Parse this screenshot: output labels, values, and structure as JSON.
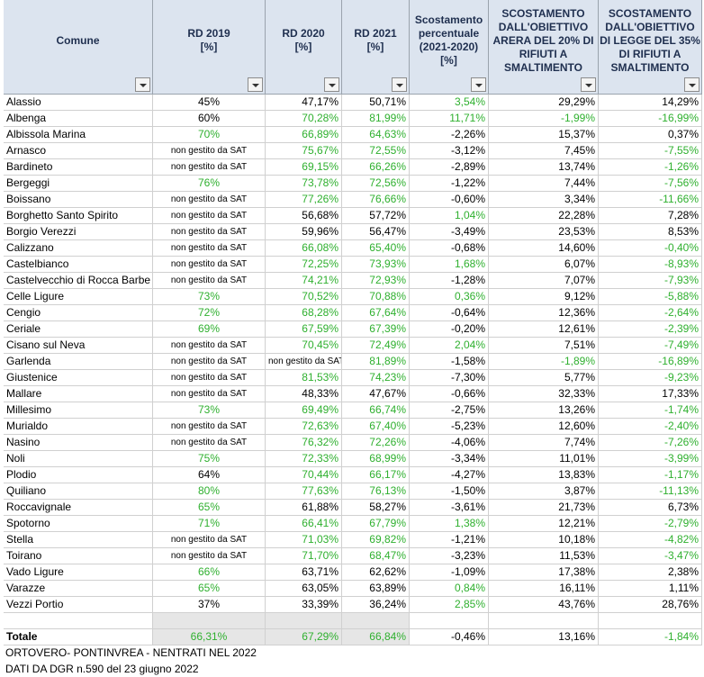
{
  "header": {
    "columns": [
      "Comune",
      "RD 2019\n[%]",
      "RD 2020\n[%]",
      "RD 2021\n[%]",
      "Scostamento\npercentuale\n(2021-2020)\n[%]",
      "SCOSTAMENTO\nDALL'OBIETTIVO\nARERA DEL 20% DI\nRIFIUTI A\nSMALTIMENTO",
      "SCOSTAMENTO\nDALL'OBIETTIVO\nDI LEGGE DEL 35%\nDI RIFIUTI A\nSMALTIMENTO"
    ]
  },
  "table": {
    "rows": [
      {
        "cells": [
          "Alassio",
          "45%",
          "47,17%",
          "50,71%",
          "3,54%",
          "29,29%",
          "14,29%"
        ],
        "colors": [
          "black",
          "black",
          "black",
          "green",
          "black",
          "black"
        ]
      },
      {
        "cells": [
          "Albenga",
          "60%",
          "70,28%",
          "81,99%",
          "11,71%",
          "-1,99%",
          "-16,99%"
        ],
        "colors": [
          "black",
          "green",
          "green",
          "green",
          "green",
          "green"
        ]
      },
      {
        "cells": [
          "Albissola Marina",
          "70%",
          "66,89%",
          "64,63%",
          "-2,26%",
          "15,37%",
          "0,37%"
        ],
        "colors": [
          "green",
          "green",
          "green",
          "black",
          "black",
          "black"
        ]
      },
      {
        "cells": [
          "Arnasco",
          "non gestito da SAT",
          "75,67%",
          "72,55%",
          "-3,12%",
          "7,45%",
          "-7,55%"
        ],
        "colors": [
          "black",
          "green",
          "green",
          "black",
          "black",
          "green"
        ]
      },
      {
        "cells": [
          "Bardineto",
          "non gestito da SAT",
          "69,15%",
          "66,26%",
          "-2,89%",
          "13,74%",
          "-1,26%"
        ],
        "colors": [
          "black",
          "green",
          "green",
          "black",
          "black",
          "green"
        ]
      },
      {
        "cells": [
          "Bergeggi",
          "76%",
          "73,78%",
          "72,56%",
          "-1,22%",
          "7,44%",
          "-7,56%"
        ],
        "colors": [
          "green",
          "green",
          "green",
          "black",
          "black",
          "green"
        ]
      },
      {
        "cells": [
          "Boissano",
          "non gestito da SAT",
          "77,26%",
          "76,66%",
          "-0,60%",
          "3,34%",
          "-11,66%"
        ],
        "colors": [
          "black",
          "green",
          "green",
          "black",
          "black",
          "green"
        ]
      },
      {
        "cells": [
          "Borghetto Santo Spirito",
          "non gestito da SAT",
          "56,68%",
          "57,72%",
          "1,04%",
          "22,28%",
          "7,28%"
        ],
        "colors": [
          "black",
          "black",
          "black",
          "green",
          "black",
          "black"
        ]
      },
      {
        "cells": [
          "Borgio Verezzi",
          "non gestito da SAT",
          "59,96%",
          "56,47%",
          "-3,49%",
          "23,53%",
          "8,53%"
        ],
        "colors": [
          "black",
          "black",
          "black",
          "black",
          "black",
          "black"
        ]
      },
      {
        "cells": [
          "Calizzano",
          "non gestito da SAT",
          "66,08%",
          "65,40%",
          "-0,68%",
          "14,60%",
          "-0,40%"
        ],
        "colors": [
          "black",
          "green",
          "green",
          "black",
          "black",
          "green"
        ]
      },
      {
        "cells": [
          "Castelbianco",
          "non gestito da SAT",
          "72,25%",
          "73,93%",
          "1,68%",
          "6,07%",
          "-8,93%"
        ],
        "colors": [
          "black",
          "green",
          "green",
          "green",
          "black",
          "green"
        ]
      },
      {
        "cells": [
          "Castelvecchio di Rocca Barbe",
          "non gestito da SAT",
          "74,21%",
          "72,93%",
          "-1,28%",
          "7,07%",
          "-7,93%"
        ],
        "colors": [
          "black",
          "green",
          "green",
          "black",
          "black",
          "green"
        ]
      },
      {
        "cells": [
          "Celle Ligure",
          "73%",
          "70,52%",
          "70,88%",
          "0,36%",
          "9,12%",
          "-5,88%"
        ],
        "colors": [
          "green",
          "green",
          "green",
          "green",
          "black",
          "green"
        ]
      },
      {
        "cells": [
          "Cengio",
          "72%",
          "68,28%",
          "67,64%",
          "-0,64%",
          "12,36%",
          "-2,64%"
        ],
        "colors": [
          "green",
          "green",
          "green",
          "black",
          "black",
          "green"
        ]
      },
      {
        "cells": [
          "Ceriale",
          "69%",
          "67,59%",
          "67,39%",
          "-0,20%",
          "12,61%",
          "-2,39%"
        ],
        "colors": [
          "green",
          "green",
          "green",
          "black",
          "black",
          "green"
        ]
      },
      {
        "cells": [
          "Cisano sul Neva",
          "non gestito da SAT",
          "70,45%",
          "72,49%",
          "2,04%",
          "7,51%",
          "-7,49%"
        ],
        "colors": [
          "black",
          "green",
          "green",
          "green",
          "black",
          "green"
        ]
      },
      {
        "cells": [
          "Garlenda",
          "non gestito da SAT",
          "non gestito da SAT",
          "81,89%",
          "-1,58%",
          "-1,89%",
          "-16,89%"
        ],
        "colors": [
          "black",
          "black",
          "green",
          "black",
          "green",
          "green"
        ]
      },
      {
        "cells": [
          "Giustenice",
          "non gestito da SAT",
          "81,53%",
          "74,23%",
          "-7,30%",
          "5,77%",
          "-9,23%"
        ],
        "colors": [
          "black",
          "green",
          "green",
          "black",
          "black",
          "green"
        ]
      },
      {
        "cells": [
          "Mallare",
          "non gestito da SAT",
          "48,33%",
          "47,67%",
          "-0,66%",
          "32,33%",
          "17,33%"
        ],
        "colors": [
          "black",
          "black",
          "black",
          "black",
          "black",
          "black"
        ]
      },
      {
        "cells": [
          "Millesimo",
          "73%",
          "69,49%",
          "66,74%",
          "-2,75%",
          "13,26%",
          "-1,74%"
        ],
        "colors": [
          "green",
          "green",
          "green",
          "black",
          "black",
          "green"
        ]
      },
      {
        "cells": [
          "Murialdo",
          "non gestito da SAT",
          "72,63%",
          "67,40%",
          "-5,23%",
          "12,60%",
          "-2,40%"
        ],
        "colors": [
          "black",
          "green",
          "green",
          "black",
          "black",
          "green"
        ]
      },
      {
        "cells": [
          "Nasino",
          "non gestito da SAT",
          "76,32%",
          "72,26%",
          "-4,06%",
          "7,74%",
          "-7,26%"
        ],
        "colors": [
          "black",
          "green",
          "green",
          "black",
          "black",
          "green"
        ]
      },
      {
        "cells": [
          "Noli",
          "75%",
          "72,33%",
          "68,99%",
          "-3,34%",
          "11,01%",
          "-3,99%"
        ],
        "colors": [
          "green",
          "green",
          "green",
          "black",
          "black",
          "green"
        ]
      },
      {
        "cells": [
          "Plodio",
          "64%",
          "70,44%",
          "66,17%",
          "-4,27%",
          "13,83%",
          "-1,17%"
        ],
        "colors": [
          "black",
          "green",
          "green",
          "black",
          "black",
          "green"
        ]
      },
      {
        "cells": [
          "Quiliano",
          "80%",
          "77,63%",
          "76,13%",
          "-1,50%",
          "3,87%",
          "-11,13%"
        ],
        "colors": [
          "green",
          "green",
          "green",
          "black",
          "black",
          "green"
        ]
      },
      {
        "cells": [
          "Roccavignale",
          "65%",
          "61,88%",
          "58,27%",
          "-3,61%",
          "21,73%",
          "6,73%"
        ],
        "colors": [
          "green",
          "black",
          "black",
          "black",
          "black",
          "black"
        ]
      },
      {
        "cells": [
          "Spotorno",
          "71%",
          "66,41%",
          "67,79%",
          "1,38%",
          "12,21%",
          "-2,79%"
        ],
        "colors": [
          "green",
          "green",
          "green",
          "green",
          "black",
          "green"
        ]
      },
      {
        "cells": [
          "Stella",
          "non gestito da SAT",
          "71,03%",
          "69,82%",
          "-1,21%",
          "10,18%",
          "-4,82%"
        ],
        "colors": [
          "black",
          "green",
          "green",
          "black",
          "black",
          "green"
        ]
      },
      {
        "cells": [
          "Toirano",
          "non gestito da SAT",
          "71,70%",
          "68,47%",
          "-3,23%",
          "11,53%",
          "-3,47%"
        ],
        "colors": [
          "black",
          "green",
          "green",
          "black",
          "black",
          "green"
        ]
      },
      {
        "cells": [
          "Vado Ligure",
          "66%",
          "63,71%",
          "62,62%",
          "-1,09%",
          "17,38%",
          "2,38%"
        ],
        "colors": [
          "green",
          "black",
          "black",
          "black",
          "black",
          "black"
        ]
      },
      {
        "cells": [
          "Varazze",
          "65%",
          "63,05%",
          "63,89%",
          "0,84%",
          "16,11%",
          "1,11%"
        ],
        "colors": [
          "green",
          "black",
          "black",
          "green",
          "black",
          "black"
        ]
      },
      {
        "cells": [
          "Vezzi Portio",
          "37%",
          "33,39%",
          "36,24%",
          "2,85%",
          "43,76%",
          "28,76%"
        ],
        "colors": [
          "black",
          "black",
          "black",
          "green",
          "black",
          "black"
        ]
      }
    ],
    "total": {
      "cells": [
        "Totale",
        "66,31%",
        "67,29%",
        "66,84%",
        "-0,46%",
        "13,16%",
        "-1,84%"
      ],
      "colors": [
        "green",
        "green",
        "green",
        "black",
        "black",
        "green"
      ]
    }
  },
  "notes": [
    "ORTOVERO- PONTINVREA - NENTRATI NEL 2022",
    "DATI DA DGR n.590 del 23 giugno 2022"
  ]
}
